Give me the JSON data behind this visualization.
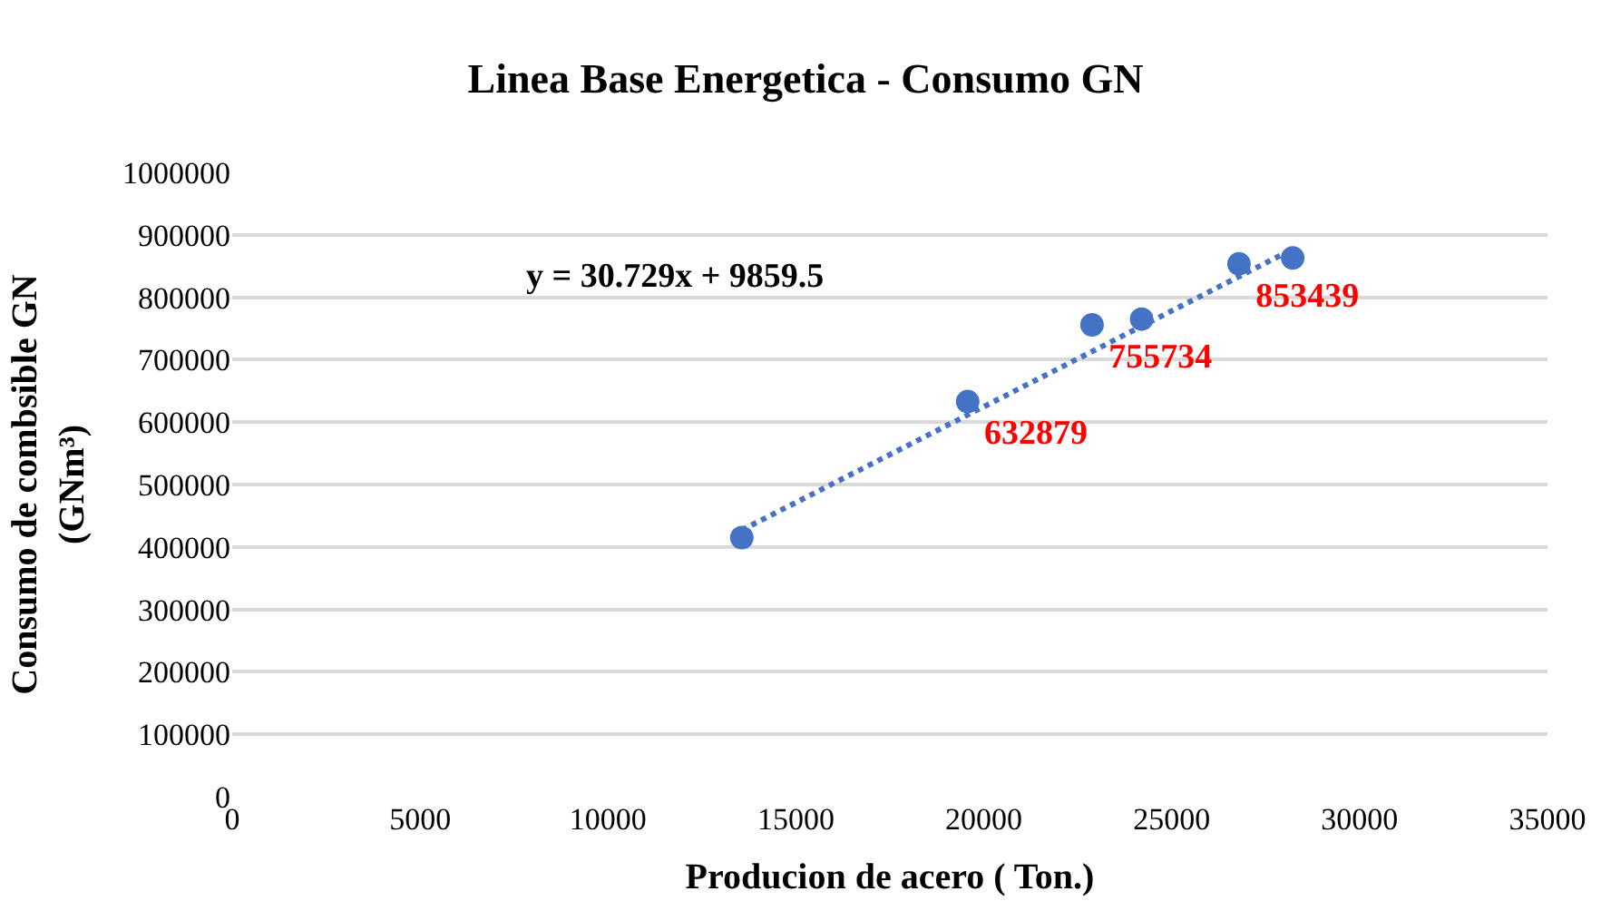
{
  "chart_data": {
    "type": "scatter",
    "title": "Linea Base Energetica - Consumo GN",
    "xlabel": "Producion de acero ( Ton.)",
    "ylabel": "Consumo de combsible GN\n(GNm³)",
    "annotations": [
      "y = 30.729x + 9859.5"
    ],
    "series": [
      {
        "type": "scatter",
        "color": "#4472c4",
        "x": [
          13560,
          19570,
          22880,
          24200,
          26790,
          28220
        ],
        "values": [
          415000,
          632879,
          755734,
          765000,
          853439,
          863000
        ],
        "value_labels": [
          null,
          "632879",
          "755734",
          null,
          "853439",
          null
        ],
        "marker": "circle"
      },
      {
        "type": "line",
        "color": "#4472c4",
        "x": [
          13560,
          28220
        ],
        "values": [
          427000,
          877000
        ],
        "line_style": "dotted"
      }
    ],
    "xlim": [
      0,
      35000
    ],
    "xticks": [
      0,
      5000,
      10000,
      15000,
      20000,
      25000,
      30000,
      35000
    ],
    "ylim": [
      0,
      1000000
    ],
    "yticks": [
      0,
      100000,
      200000,
      300000,
      400000,
      500000,
      600000,
      700000,
      800000,
      900000,
      1000000
    ],
    "grid": "y"
  }
}
